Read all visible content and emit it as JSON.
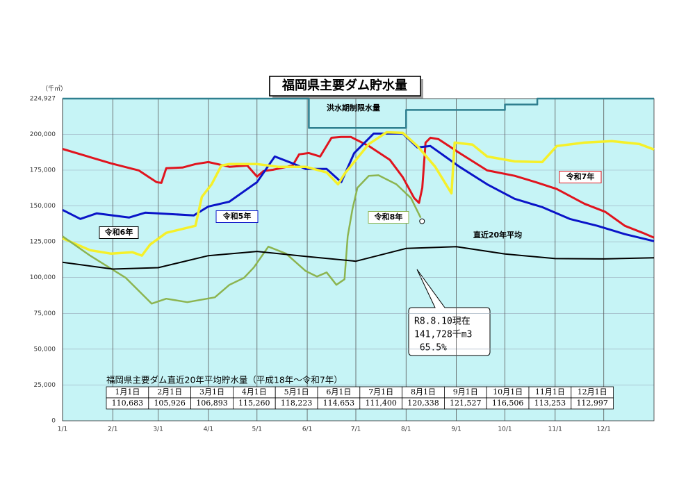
{
  "chart_data": {
    "type": "line",
    "title": "福岡県主要ダム貯水量",
    "y_unit": "（千㎥）",
    "xlim": [
      0,
      365
    ],
    "xticks": [
      {
        "value": 0,
        "label": "1/1"
      },
      {
        "value": 31,
        "label": "2/1"
      },
      {
        "value": 59,
        "label": "3/1"
      },
      {
        "value": 90,
        "label": "4/1"
      },
      {
        "value": 120,
        "label": "5/1"
      },
      {
        "value": 151,
        "label": "6/1"
      },
      {
        "value": 181,
        "label": "7/1"
      },
      {
        "value": 212,
        "label": "8/1"
      },
      {
        "value": 243,
        "label": "9/1"
      },
      {
        "value": 273,
        "label": "10/1"
      },
      {
        "value": 304,
        "label": "11/1"
      },
      {
        "value": 334,
        "label": "12/1"
      }
    ],
    "ylim": [
      0,
      224927
    ],
    "yticks": [
      0,
      {
        "value": 25000,
        "label": "25,000"
      },
      {
        "value": 50000,
        "label": "50,000"
      },
      {
        "value": 75000,
        "label": "75,000"
      },
      {
        "value": 100000,
        "label": "100,000"
      },
      {
        "value": 125000,
        "label": "125,000"
      },
      {
        "value": 150000,
        "label": "150,000"
      },
      {
        "value": 175000,
        "label": "175,000"
      },
      {
        "value": 200000,
        "label": "200,000"
      },
      {
        "value": 224927,
        "label": "224,927"
      }
    ],
    "grid": true,
    "series": [
      {
        "name": "洪水期制限水量",
        "color": "#2f7f8f",
        "x": [
          0,
          152,
          152,
          212,
          212,
          273,
          273,
          293,
          293,
          365
        ],
        "values": [
          224927,
          224927,
          204400,
          204400,
          217000,
          217000,
          220800,
          220800,
          224927,
          224927
        ]
      },
      {
        "name": "令和7年",
        "color": "#e0141e",
        "x": [
          0,
          30,
          47,
          58,
          61,
          64,
          74,
          82,
          90,
          103,
          114,
          120,
          124,
          130,
          142,
          146,
          152,
          159,
          166,
          172,
          178,
          189,
          202,
          210,
          217,
          220,
          222,
          224,
          227,
          232,
          245,
          262,
          279,
          292,
          305,
          322,
          335,
          347,
          358,
          365
        ],
        "values": [
          189800,
          179700,
          174800,
          166600,
          166100,
          176300,
          176800,
          179200,
          180600,
          177300,
          178200,
          170500,
          174300,
          175300,
          178200,
          186000,
          186900,
          184500,
          197600,
          198100,
          198100,
          191800,
          182100,
          170000,
          155500,
          152100,
          162700,
          194200,
          197600,
          196600,
          186900,
          174800,
          171000,
          166600,
          161800,
          151600,
          145800,
          136100,
          131200,
          127900
        ]
      },
      {
        "name": "令和5年",
        "color": "#0a14c8",
        "x": [
          0,
          11,
          21,
          41,
          51,
          81,
          90,
          103,
          120,
          131,
          142,
          150,
          163,
          172,
          180,
          192,
          210,
          219,
          227,
          245,
          262,
          279,
          296,
          313,
          330,
          347,
          365
        ],
        "values": [
          147200,
          140900,
          144800,
          141900,
          145300,
          143400,
          149600,
          153000,
          166600,
          184500,
          179700,
          175800,
          175800,
          166600,
          186900,
          200500,
          200500,
          190800,
          191800,
          177300,
          165100,
          155000,
          149200,
          140900,
          136100,
          130300,
          125400
        ]
      },
      {
        "name": "令和6年",
        "color": "#f5f02a",
        "x": [
          0,
          17,
          30,
          43,
          49,
          54,
          64,
          82,
          86,
          92,
          98,
          103,
          120,
          133,
          150,
          163,
          170,
          174,
          189,
          200,
          210,
          219,
          230,
          240,
          242,
          253,
          262,
          279,
          296,
          305,
          322,
          339,
          356,
          365
        ],
        "values": [
          127400,
          119100,
          116700,
          117700,
          115300,
          123000,
          131200,
          136100,
          156400,
          165100,
          178200,
          179200,
          179200,
          177300,
          177300,
          173400,
          165100,
          172400,
          193200,
          201400,
          201000,
          191800,
          177300,
          158800,
          194200,
          192800,
          184500,
          181100,
          180600,
          191800,
          194200,
          195200,
          193200,
          189400
        ]
      },
      {
        "name": "令和8年",
        "color": "#8cb450",
        "x": [
          0,
          17,
          39,
          55,
          64,
          77,
          94,
          103,
          112,
          118,
          127,
          138,
          150,
          157,
          163,
          169,
          174,
          176,
          179,
          182,
          189,
          195,
          206,
          215,
          221
        ],
        "values": [
          128800,
          115300,
          99800,
          81800,
          85200,
          82800,
          86200,
          94900,
          99800,
          107000,
          121600,
          116700,
          104600,
          100700,
          103600,
          94900,
          98800,
          128800,
          148200,
          162700,
          171000,
          171400,
          165100,
          155500,
          141728
        ]
      },
      {
        "name": "直近20年平均",
        "color": "#000000",
        "x": [
          0,
          31,
          59,
          90,
          120,
          151,
          181,
          212,
          243,
          273,
          304,
          334,
          365
        ],
        "values": [
          110683,
          105926,
          106893,
          115260,
          118223,
          114653,
          111400,
          120338,
          121527,
          116506,
          113253,
          112997,
          113800
        ]
      }
    ],
    "annotation": [
      "R8.8.10現在",
      "141,728千m3",
      " 65.5%"
    ],
    "table": {
      "title": "福岡県主要ダム直近20年平均貯水量（平成18年～令和7年）",
      "header": [
        "1月1日",
        "2月1日",
        "3月1日",
        "4月1日",
        "5月1日",
        "6月1日",
        "7月1日",
        "8月1日",
        "9月1日",
        "10月1日",
        "11月1日",
        "12月1日"
      ],
      "row": [
        "110,683",
        "105,926",
        "106,893",
        "115,260",
        "118,223",
        "114,653",
        "111,400",
        "120,338",
        "121,527",
        "116,506",
        "113,253",
        "112,997"
      ]
    }
  }
}
